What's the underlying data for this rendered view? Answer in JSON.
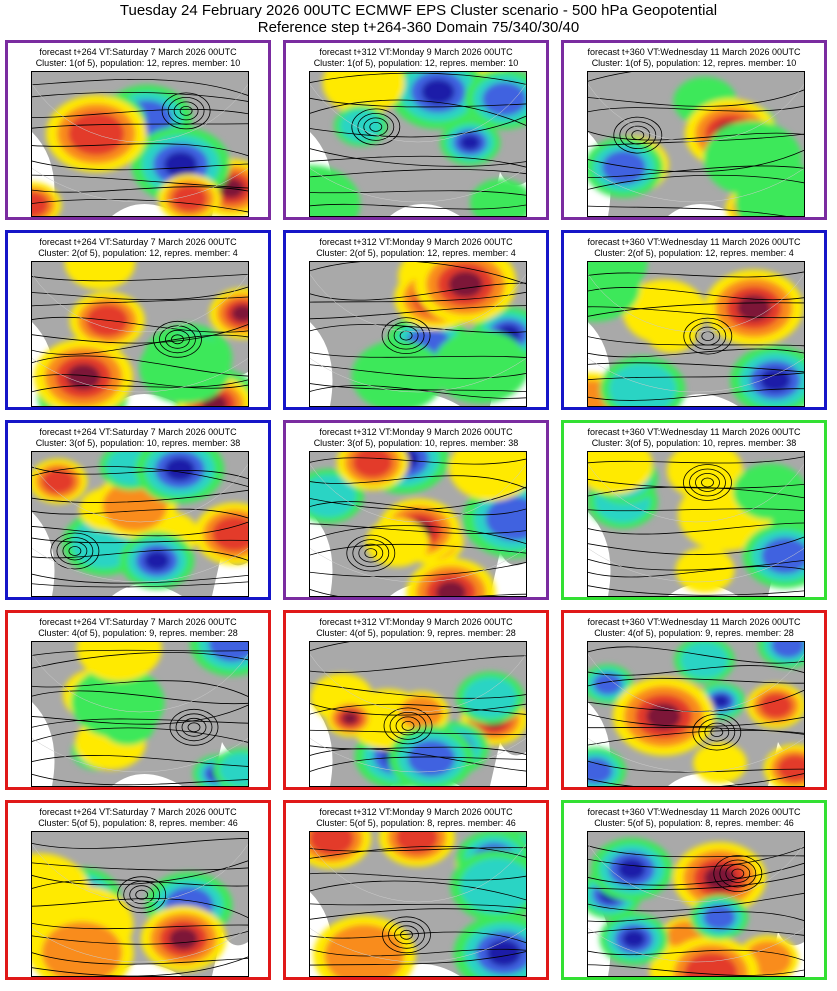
{
  "header": {
    "title": "Tuesday 24 February 2026 00UTC ECMWF EPS Cluster scenario - 500 hPa Geopotential",
    "subtitle": "Reference step t+264-360 Domain 75/340/30/40"
  },
  "colors": {
    "purple": "#7a2ca0",
    "blue": "#1515c8",
    "green": "#33e033",
    "red": "#e01818"
  },
  "columns": [
    "forecast t+264 VT:Saturday 7 March 2026 00UTC",
    "forecast t+312 VT:Monday 9 March 2026 00UTC",
    "forecast t+360 VT:Wednesday 11 March 2026 00UTC"
  ],
  "rows": [
    {
      "cluster": "Cluster: 1(of 5), population: 12, repres. member: 10",
      "borders": [
        "purple",
        "purple",
        "purple"
      ]
    },
    {
      "cluster": "Cluster: 2(of 5), population: 12, repres. member: 4",
      "borders": [
        "blue",
        "blue",
        "blue"
      ]
    },
    {
      "cluster": "Cluster: 3(of 5), population: 10, repres. member: 38",
      "borders": [
        "blue",
        "purple",
        "green"
      ]
    },
    {
      "cluster": "Cluster: 4(of 5), population: 9, repres. member: 28",
      "borders": [
        "red",
        "red",
        "red"
      ]
    },
    {
      "cluster": "Cluster: 5(of 5), population: 8, repres. member: 46",
      "borders": [
        "red",
        "red",
        "green"
      ]
    }
  ]
}
